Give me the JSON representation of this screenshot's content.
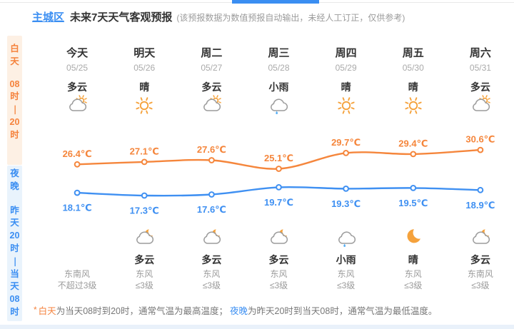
{
  "header": {
    "region": "主城区",
    "title": "未来7天天气客观预报",
    "note": "(该预报数据为数值预报自动输出，未经人工订正，仅供参考)"
  },
  "sidebar": {
    "day": {
      "lines": [
        "白",
        "天",
        "",
        "08",
        "时",
        "—",
        "20",
        "时"
      ]
    },
    "night": {
      "lines": [
        "夜",
        "晚",
        "",
        "昨",
        "天",
        "20",
        "时",
        "—",
        "当",
        "天",
        "08",
        "时"
      ]
    }
  },
  "columns": [
    {
      "day": "今天",
      "date": "05/25",
      "day_condition": "多云",
      "day_icon": "cloud-sun",
      "night_icon": "",
      "night_condition": "",
      "wind_direction": "东南风",
      "wind_level": "不超过3级"
    },
    {
      "day": "明天",
      "date": "05/26",
      "day_condition": "晴",
      "day_icon": "sun",
      "night_icon": "cloud-moon",
      "night_condition": "多云",
      "wind_direction": "东风",
      "wind_level": "≤3级"
    },
    {
      "day": "周二",
      "date": "05/27",
      "day_condition": "多云",
      "day_icon": "cloud-sun",
      "night_icon": "cloud-moon",
      "night_condition": "多云",
      "wind_direction": "东风",
      "wind_level": "≤3级"
    },
    {
      "day": "周三",
      "date": "05/28",
      "day_condition": "小雨",
      "day_icon": "cloud-rain",
      "night_icon": "cloud-moon",
      "night_condition": "多云",
      "wind_direction": "东风",
      "wind_level": "≤3级"
    },
    {
      "day": "周四",
      "date": "05/29",
      "day_condition": "晴",
      "day_icon": "sun",
      "night_icon": "cloud-rain",
      "night_condition": "小雨",
      "wind_direction": "东风",
      "wind_level": "≤3级"
    },
    {
      "day": "周五",
      "date": "05/30",
      "day_condition": "晴",
      "day_icon": "sun",
      "night_icon": "moon",
      "night_condition": "晴",
      "wind_direction": "东风",
      "wind_level": "≤3级"
    },
    {
      "day": "周六",
      "date": "05/31",
      "day_condition": "多云",
      "day_icon": "cloud-sun",
      "night_icon": "cloud-moon",
      "night_condition": "多云",
      "wind_direction": "东南风",
      "wind_level": "≤3级"
    }
  ],
  "chart_data": {
    "type": "line",
    "categories": [
      "今天",
      "明天",
      "周二",
      "周三",
      "周四",
      "周五",
      "周六"
    ],
    "series": [
      {
        "name": "白天最高气温",
        "color": "#f5863c",
        "values": [
          26.4,
          27.1,
          27.6,
          25.1,
          29.7,
          29.4,
          30.6
        ]
      },
      {
        "name": "夜晚最低气温",
        "color": "#3f90f2",
        "values": [
          18.1,
          17.3,
          17.6,
          19.7,
          19.3,
          19.5,
          18.9
        ]
      }
    ],
    "unit": "℃",
    "ylim": [
      16,
      32
    ],
    "grid": false,
    "legend": "none",
    "value_labels": true
  },
  "footer": {
    "asterisk": "*",
    "day_label": "白天",
    "day_text": "为当天08时到20时，通常气温为最高温度；",
    "night_label": "夜晚",
    "night_text": "为昨天20时到当天08时，通常气温为最低温度。"
  },
  "colors": {
    "accent_orange": "#f5823c",
    "accent_blue": "#3a8ef2",
    "day_bg": "#fdf0e4",
    "night_bg": "#e9f3fc",
    "high_line": "#f5863c",
    "low_line": "#3f90f2",
    "text_dark": "#333333",
    "text_gray": "#9b9b9b",
    "cloud_gray": "#9c9c9c",
    "rain_blue": "#56aef5",
    "bottom_strip": "#e9f1fa",
    "sun_orange": "#f5a23c"
  }
}
